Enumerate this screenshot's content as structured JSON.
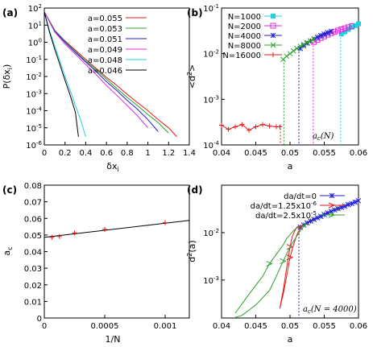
{
  "chart_data": [
    {
      "panel": "a",
      "type": "line",
      "tag": "(a)",
      "xlabel": "δx_i",
      "ylabel": "P(δx_i)",
      "xlim": [
        0,
        1.4
      ],
      "ylim_log10": [
        -6,
        2
      ],
      "xscale": "linear",
      "yscale": "log",
      "xticks": [
        "0",
        "0.2",
        "0.4",
        "0.6",
        "0.8",
        "1",
        "1.2",
        "1.4"
      ],
      "yticks": [
        "10^-6",
        "10^-5",
        "10^-4",
        "10^-3",
        "10^-2",
        "10^-1",
        "10^0",
        "10^1",
        "10^2"
      ],
      "legend_position": "top-right",
      "series": [
        {
          "name": "a=0.055",
          "color": "#e41a1c",
          "x": [
            0.0,
            0.1,
            0.2,
            0.3,
            0.4,
            0.5,
            0.6,
            0.7,
            0.8,
            0.9,
            1.0,
            1.1,
            1.2,
            1.28
          ],
          "y": [
            60,
            5,
            1.2,
            0.35,
            0.1,
            0.03,
            0.009,
            0.003,
            0.0009,
            0.0003,
            0.0001,
            3e-05,
            1e-05,
            3e-06
          ]
        },
        {
          "name": "a=0.053",
          "color": "#2ca02c",
          "x": [
            0.0,
            0.1,
            0.2,
            0.3,
            0.4,
            0.5,
            0.6,
            0.7,
            0.8,
            0.9,
            1.0,
            1.1,
            1.2
          ],
          "y": [
            60,
            5,
            1.1,
            0.3,
            0.08,
            0.025,
            0.007,
            0.002,
            0.0006,
            0.0002,
            6e-05,
            2e-05,
            5e-06
          ]
        },
        {
          "name": "a=0.051",
          "color": "#1f1fd0",
          "x": [
            0.0,
            0.1,
            0.2,
            0.3,
            0.4,
            0.5,
            0.6,
            0.7,
            0.8,
            0.9,
            1.0,
            1.1
          ],
          "y": [
            60,
            4.5,
            1.0,
            0.25,
            0.07,
            0.02,
            0.005,
            0.0015,
            0.0004,
            0.00012,
            3e-05,
            6e-06
          ]
        },
        {
          "name": "a=0.049",
          "color": "#e02ce0",
          "x": [
            0.0,
            0.1,
            0.2,
            0.3,
            0.4,
            0.5,
            0.6,
            0.7,
            0.8,
            0.9,
            1.0
          ],
          "y": [
            60,
            4,
            0.8,
            0.2,
            0.05,
            0.013,
            0.003,
            0.0008,
            0.0002,
            5e-05,
            1e-05
          ]
        },
        {
          "name": "a=0.048",
          "color": "#20d0e0",
          "x": [
            0.0,
            0.05,
            0.1,
            0.15,
            0.2,
            0.25,
            0.3,
            0.35,
            0.4
          ],
          "y": [
            60,
            5,
            0.6,
            0.08,
            0.01,
            0.0015,
            0.0002,
            3e-05,
            3e-06
          ]
        },
        {
          "name": "a=0.046",
          "color": "#000000",
          "x": [
            0.0,
            0.05,
            0.1,
            0.15,
            0.2,
            0.25,
            0.3,
            0.33
          ],
          "y": [
            60,
            4,
            0.4,
            0.05,
            0.006,
            0.0008,
            8e-05,
            3e-06
          ]
        }
      ]
    },
    {
      "panel": "b",
      "type": "line",
      "tag": "(b)",
      "xlabel": "a",
      "ylabel": "<d^2>",
      "xlim": [
        0.04,
        0.06
      ],
      "ylim_log10": [
        -4,
        -1
      ],
      "xscale": "linear",
      "yscale": "log",
      "xticks": [
        "0.04",
        "0.045",
        "0.05",
        "0.055",
        "0.06"
      ],
      "yticks": [
        "10^-4",
        "10^-3",
        "10^-2",
        "10^-1"
      ],
      "legend_position": "top-left",
      "annotation": "a_c(N)",
      "series": [
        {
          "name": "N=1000",
          "color": "#20d0e0",
          "marker": "square-filled",
          "ac": 0.0574,
          "x": [
            0.0575,
            0.058,
            0.0585,
            0.059,
            0.0595,
            0.06
          ],
          "y": [
            0.027,
            0.03,
            0.034,
            0.038,
            0.041,
            0.045
          ]
        },
        {
          "name": "N=2000",
          "color": "#e02ce0",
          "marker": "square-open",
          "ac": 0.0534,
          "x": [
            0.0535,
            0.054,
            0.0545,
            0.055,
            0.0555,
            0.056,
            0.0565,
            0.057,
            0.0575,
            0.058,
            0.0585,
            0.059
          ],
          "y": [
            0.018,
            0.02,
            0.022,
            0.024,
            0.026,
            0.028,
            0.03,
            0.032,
            0.034,
            0.036,
            0.038,
            0.04
          ]
        },
        {
          "name": "N=4000",
          "color": "#1f1fd0",
          "marker": "star",
          "ac": 0.0513,
          "x": [
            0.0515,
            0.052,
            0.0525,
            0.053,
            0.0535,
            0.054,
            0.0545,
            0.055,
            0.0555,
            0.056
          ],
          "y": [
            0.013,
            0.015,
            0.017,
            0.019,
            0.021,
            0.023,
            0.025,
            0.027,
            0.029,
            0.031
          ]
        },
        {
          "name": "N=8000",
          "color": "#2ca02c",
          "marker": "x",
          "ac": 0.0491,
          "x": [
            0.049,
            0.0495,
            0.05,
            0.0505,
            0.051,
            0.0515,
            0.052,
            0.0525,
            0.053,
            0.0535
          ],
          "y": [
            0.0075,
            0.0088,
            0.01,
            0.0115,
            0.013,
            0.0145,
            0.016,
            0.0175,
            0.019,
            0.021
          ]
        },
        {
          "name": "N=16000",
          "color": "#e41a1c",
          "marker": "plus",
          "ac": 0.0486,
          "x": [
            0.04,
            0.041,
            0.042,
            0.043,
            0.044,
            0.045,
            0.046,
            0.047,
            0.048,
            0.0485
          ],
          "y": [
            0.00027,
            0.00022,
            0.00025,
            0.00028,
            0.00021,
            0.00025,
            0.00028,
            0.00026,
            0.00025,
            0.00025
          ]
        }
      ]
    },
    {
      "panel": "c",
      "type": "scatter",
      "tag": "(c)",
      "xlabel": "1/N",
      "ylabel": "a_c",
      "xlim": [
        0,
        0.0012
      ],
      "ylim": [
        0,
        0.08
      ],
      "xticks": [
        "0",
        "0.0005",
        "0.001"
      ],
      "yticks": [
        "0",
        "0.01",
        "0.02",
        "0.03",
        "0.04",
        "0.05",
        "0.06",
        "0.07",
        "0.08"
      ],
      "points": {
        "x": [
          6.25e-05,
          0.000125,
          0.00025,
          0.0005,
          0.001
        ],
        "y": [
          0.0486,
          0.0491,
          0.0513,
          0.0534,
          0.0574
        ],
        "color": "#e41a1c",
        "marker": "plus"
      },
      "fit": {
        "x": [
          0,
          0.0012
        ],
        "y": [
          0.0486,
          0.0588
        ],
        "color": "#000000"
      }
    },
    {
      "panel": "d",
      "type": "line",
      "tag": "(d)",
      "xlabel": "a",
      "ylabel": "d^2(a)",
      "xlim": [
        0.04,
        0.06
      ],
      "ylim_log10": [
        -3.8,
        -1
      ],
      "xscale": "linear",
      "yscale": "log",
      "xticks": [
        "0.04",
        "0.045",
        "0.05",
        "0.055",
        "0.06"
      ],
      "yticks": [
        "10^-3",
        "10^-2"
      ],
      "legend_position": "top-left",
      "annotation": "a_c(N = 4000)",
      "series": [
        {
          "name": "da/dt=0",
          "color": "#1f1fd0",
          "marker": "star",
          "ac": 0.0513,
          "x": [
            0.0515,
            0.052,
            0.0525,
            0.053,
            0.0535,
            0.054,
            0.0545,
            0.055,
            0.0555,
            0.056,
            0.0565,
            0.057,
            0.0575,
            0.058,
            0.0585,
            0.059,
            0.0595,
            0.06
          ],
          "y": [
            0.013,
            0.0145,
            0.016,
            0.0175,
            0.019,
            0.0205,
            0.022,
            0.024,
            0.026,
            0.028,
            0.03,
            0.032,
            0.034,
            0.036,
            0.039,
            0.041,
            0.044,
            0.047
          ]
        },
        {
          "name": "da/dt=1.25x10^-6",
          "color": "#e41a1c",
          "marker": "arrow",
          "x": [
            0.0485,
            0.049,
            0.0495,
            0.05,
            0.0503,
            0.0507,
            0.051,
            0.0515,
            0.052,
            0.0515,
            0.051,
            0.0505,
            0.05,
            0.0495,
            0.049,
            0.0485
          ],
          "y": [
            0.00025,
            0.0006,
            0.0018,
            0.005,
            0.008,
            0.011,
            0.013,
            0.014,
            0.0145,
            0.0125,
            0.009,
            0.0055,
            0.003,
            0.0012,
            0.0005,
            0.00025
          ]
        },
        {
          "name": "da/dt=2.5x10^-5",
          "color": "#2ca02c",
          "marker": "arrow",
          "x": [
            0.042,
            0.044,
            0.046,
            0.047,
            0.048,
            0.049,
            0.0495,
            0.05,
            0.0505,
            0.051,
            0.052,
            0.0525,
            0.052,
            0.0515,
            0.051,
            0.05,
            0.049,
            0.048,
            0.047,
            0.045,
            0.043,
            0.0418
          ],
          "y": [
            0.0002,
            0.0005,
            0.0012,
            0.0022,
            0.0035,
            0.0055,
            0.0075,
            0.009,
            0.011,
            0.0125,
            0.0145,
            0.0155,
            0.0135,
            0.011,
            0.0085,
            0.005,
            0.0025,
            0.0012,
            0.0006,
            0.0003,
            0.00018,
            0.00016
          ]
        }
      ]
    }
  ]
}
